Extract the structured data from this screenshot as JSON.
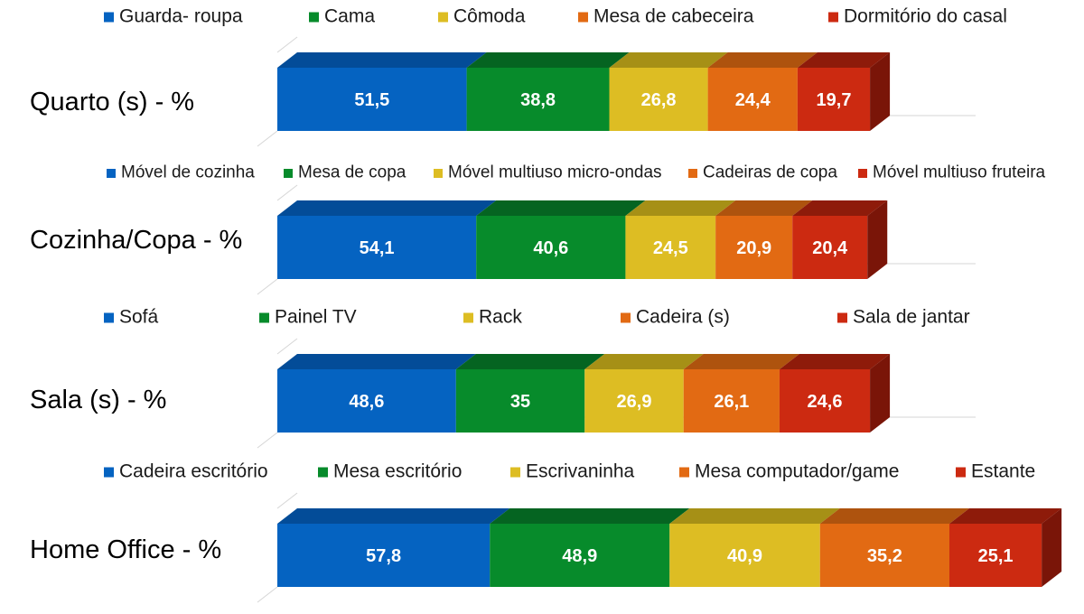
{
  "colors": {
    "front": [
      "#0563C1",
      "#078B2B",
      "#DDBD23",
      "#E26A13",
      "#CC2A11"
    ],
    "top": [
      "#034C98",
      "#056421",
      "#A69016",
      "#AE530E",
      "#8E1B0A"
    ],
    "side": [
      "#023F7F",
      "#04531C",
      "#8A7812",
      "#91450B",
      "#7A1508"
    ],
    "guide": "#d6d6d6"
  },
  "chart_data": [
    {
      "type": "bar",
      "orientation": "horizontal",
      "stacked": true,
      "title": "",
      "category": "Quarto (s) - %",
      "legend_position": "top",
      "series": [
        {
          "name": "Guarda- roupa",
          "values": [
            51.5
          ],
          "label": "51,5"
        },
        {
          "name": "Cama",
          "values": [
            38.8
          ],
          "label": "38,8"
        },
        {
          "name": "Cômoda",
          "values": [
            26.8
          ],
          "label": "26,8"
        },
        {
          "name": "Mesa de cabeceira",
          "values": [
            24.4
          ],
          "label": "24,4"
        },
        {
          "name": "Dormitório do casal",
          "values": [
            19.7
          ],
          "label": "19,7"
        }
      ]
    },
    {
      "type": "bar",
      "orientation": "horizontal",
      "stacked": true,
      "title": "",
      "category": "Cozinha/Copa - %",
      "legend_position": "top",
      "series": [
        {
          "name": "Móvel de cozinha",
          "values": [
            54.1
          ],
          "label": "54,1"
        },
        {
          "name": "Mesa de copa",
          "values": [
            40.6
          ],
          "label": "40,6"
        },
        {
          "name": "Móvel multiuso micro-ondas",
          "values": [
            24.5
          ],
          "label": "24,5"
        },
        {
          "name": "Cadeiras de copa",
          "values": [
            20.9
          ],
          "label": "20,9"
        },
        {
          "name": "Móvel multiuso fruteira",
          "values": [
            20.4
          ],
          "label": "20,4"
        }
      ]
    },
    {
      "type": "bar",
      "orientation": "horizontal",
      "stacked": true,
      "title": "",
      "category": "Sala (s) - %",
      "legend_position": "top",
      "series": [
        {
          "name": "Sofá",
          "values": [
            48.6
          ],
          "label": "48,6"
        },
        {
          "name": "Painel TV",
          "values": [
            35
          ],
          "label": "35"
        },
        {
          "name": "Rack",
          "values": [
            26.9
          ],
          "label": "26,9"
        },
        {
          "name": "Cadeira (s)",
          "values": [
            26.1
          ],
          "label": "26,1"
        },
        {
          "name": "Sala de jantar",
          "values": [
            24.6
          ],
          "label": "24,6"
        }
      ]
    },
    {
      "type": "bar",
      "orientation": "horizontal",
      "stacked": true,
      "title": "",
      "category": "Home Office - %",
      "legend_position": "top",
      "series": [
        {
          "name": "Cadeira escritório",
          "values": [
            57.8
          ],
          "label": "57,8"
        },
        {
          "name": "Mesa escritório",
          "values": [
            48.9
          ],
          "label": "48,9"
        },
        {
          "name": "Escrivaninha",
          "values": [
            40.9
          ],
          "label": "40,9"
        },
        {
          "name": "Mesa computador/game",
          "values": [
            35.2
          ],
          "label": "35,2"
        },
        {
          "name": "Estante",
          "values": [
            25.1
          ],
          "label": "25,1"
        }
      ]
    }
  ]
}
